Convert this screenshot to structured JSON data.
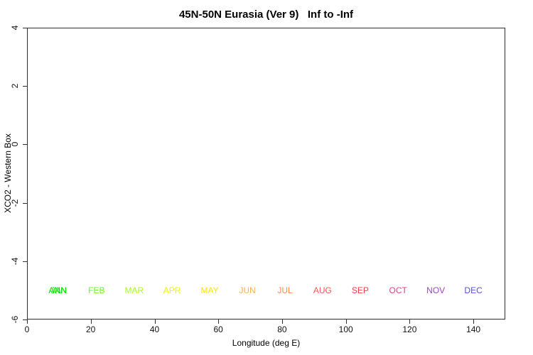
{
  "title": "45N-50N Eurasia (Ver 9)   Inf to -Inf",
  "chart_data": {
    "type": "scatter",
    "title": "45N-50N Eurasia (Ver 9)   Inf to -Inf",
    "xlabel": "Longitude (deg E)",
    "ylabel": "XCO2 - Western Box",
    "xlim": [
      0,
      150
    ],
    "ylim": [
      -6,
      4
    ],
    "x_ticks": [
      0,
      20,
      40,
      60,
      80,
      100,
      120,
      140
    ],
    "y_ticks": [
      4,
      2,
      0,
      -2,
      -4,
      -6
    ],
    "grid": false,
    "legend_position": "none",
    "series": [],
    "annotations": [
      {
        "label": "ANN",
        "x": 9.6,
        "y": -5,
        "color": "#00D400"
      },
      {
        "label": "JAN",
        "x": 10.0,
        "y": -5,
        "color": "#0BE80B"
      },
      {
        "label": "FEB",
        "x": 21.8,
        "y": -5,
        "color": "#6BF513"
      },
      {
        "label": "MAR",
        "x": 33.6,
        "y": -5,
        "color": "#A9F827"
      },
      {
        "label": "APR",
        "x": 45.5,
        "y": -5,
        "color": "#E7FA05"
      },
      {
        "label": "MAY",
        "x": 57.3,
        "y": -5,
        "color": "#FCE303"
      },
      {
        "label": "JUN",
        "x": 69.1,
        "y": -5,
        "color": "#FCB247"
      },
      {
        "label": "JUL",
        "x": 80.9,
        "y": -5,
        "color": "#FC8D59"
      },
      {
        "label": "AUG",
        "x": 92.7,
        "y": -5,
        "color": "#F9564C"
      },
      {
        "label": "SEP",
        "x": 104.5,
        "y": -5,
        "color": "#EE3A4C"
      },
      {
        "label": "OCT",
        "x": 116.4,
        "y": -5,
        "color": "#DD4387"
      },
      {
        "label": "NOV",
        "x": 128.2,
        "y": -5,
        "color": "#9C44C4"
      },
      {
        "label": "DEC",
        "x": 140.0,
        "y": -5,
        "color": "#5A4FE0"
      }
    ],
    "note": "plot area contains no data points; only colored month labels at y = -5"
  }
}
